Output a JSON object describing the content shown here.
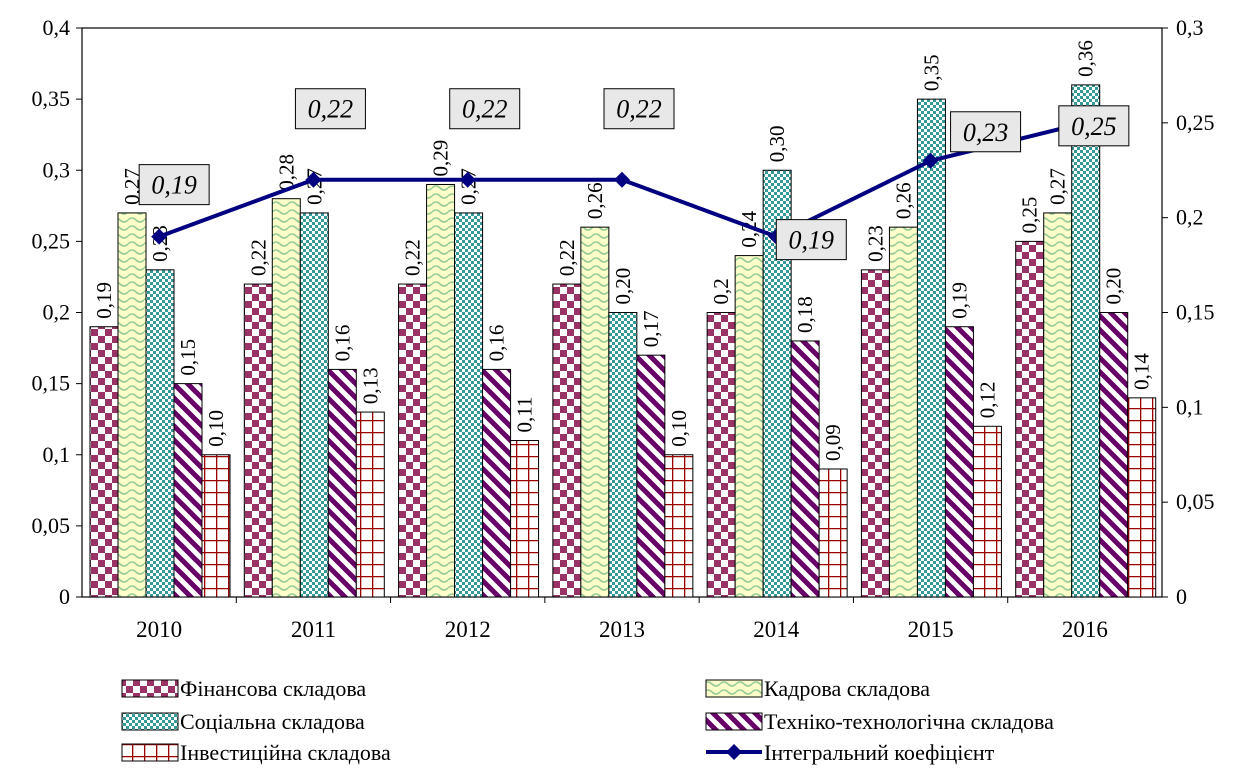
{
  "chart_data": {
    "type": "bar",
    "categories": [
      "2010",
      "2011",
      "2012",
      "2013",
      "2014",
      "2015",
      "2016"
    ],
    "series": [
      {
        "name": "Фінансова складова",
        "values": [
          0.19,
          0.22,
          0.22,
          0.22,
          0.2,
          0.23,
          0.25
        ],
        "labels": [
          "0,19",
          "0,22",
          "0,22",
          "0,22",
          "0,2",
          "0,23",
          "0,25"
        ],
        "color": "#993366",
        "pattern": "checker"
      },
      {
        "name": "Кадрова складова",
        "values": [
          0.27,
          0.28,
          0.29,
          0.26,
          0.24,
          0.26,
          0.27
        ],
        "labels": [
          "0,27",
          "0,28",
          "0,29",
          "0,26",
          "0,24",
          "0,26",
          "0,27"
        ],
        "color": "#ffffcc",
        "pattern": "wave"
      },
      {
        "name": "Соціальна складова",
        "values": [
          0.23,
          0.27,
          0.27,
          0.2,
          0.3,
          0.35,
          0.36
        ],
        "labels": [
          "0,23",
          "0,27",
          "0,27",
          "0,20",
          "0,30",
          "0,35",
          "0,36"
        ],
        "color": "#33a1a1",
        "pattern": "smallchecker"
      },
      {
        "name": "Техніко-технологічна складова",
        "values": [
          0.15,
          0.16,
          0.16,
          0.17,
          0.18,
          0.19,
          0.2
        ],
        "labels": [
          "0,15",
          "0,16",
          "0,16",
          "0,17",
          "0,18",
          "0,19",
          "0,20"
        ],
        "color": "#660066",
        "pattern": "diagonal"
      },
      {
        "name": "Інвестиційна складова",
        "values": [
          0.1,
          0.13,
          0.11,
          0.1,
          0.09,
          0.12,
          0.14
        ],
        "labels": [
          "0,10",
          "0,13",
          "0,11",
          "0,10",
          "0,09",
          "0,12",
          "0,14"
        ],
        "color": "#990000",
        "pattern": "grid"
      }
    ],
    "line": {
      "name": "Інтегральний коефіцієнт",
      "axis": "right",
      "values": [
        0.19,
        0.22,
        0.22,
        0.22,
        0.19,
        0.23,
        0.25
      ],
      "labels": [
        "0,19",
        "0,22",
        "0,22",
        "0,22",
        "0,19",
        "0,23",
        "0,25"
      ],
      "color": "#000080"
    },
    "ylim": [
      0,
      0.4
    ],
    "y2lim": [
      0,
      0.3
    ],
    "yticks": [
      "0",
      "0,05",
      "0,1",
      "0,15",
      "0,2",
      "0,25",
      "0,3",
      "0,35",
      "0,4"
    ],
    "y2ticks": [
      "0",
      "0,05",
      "0,1",
      "0,15",
      "0,2",
      "0,25",
      "0,3"
    ],
    "grid": false,
    "legend": "bottom"
  }
}
